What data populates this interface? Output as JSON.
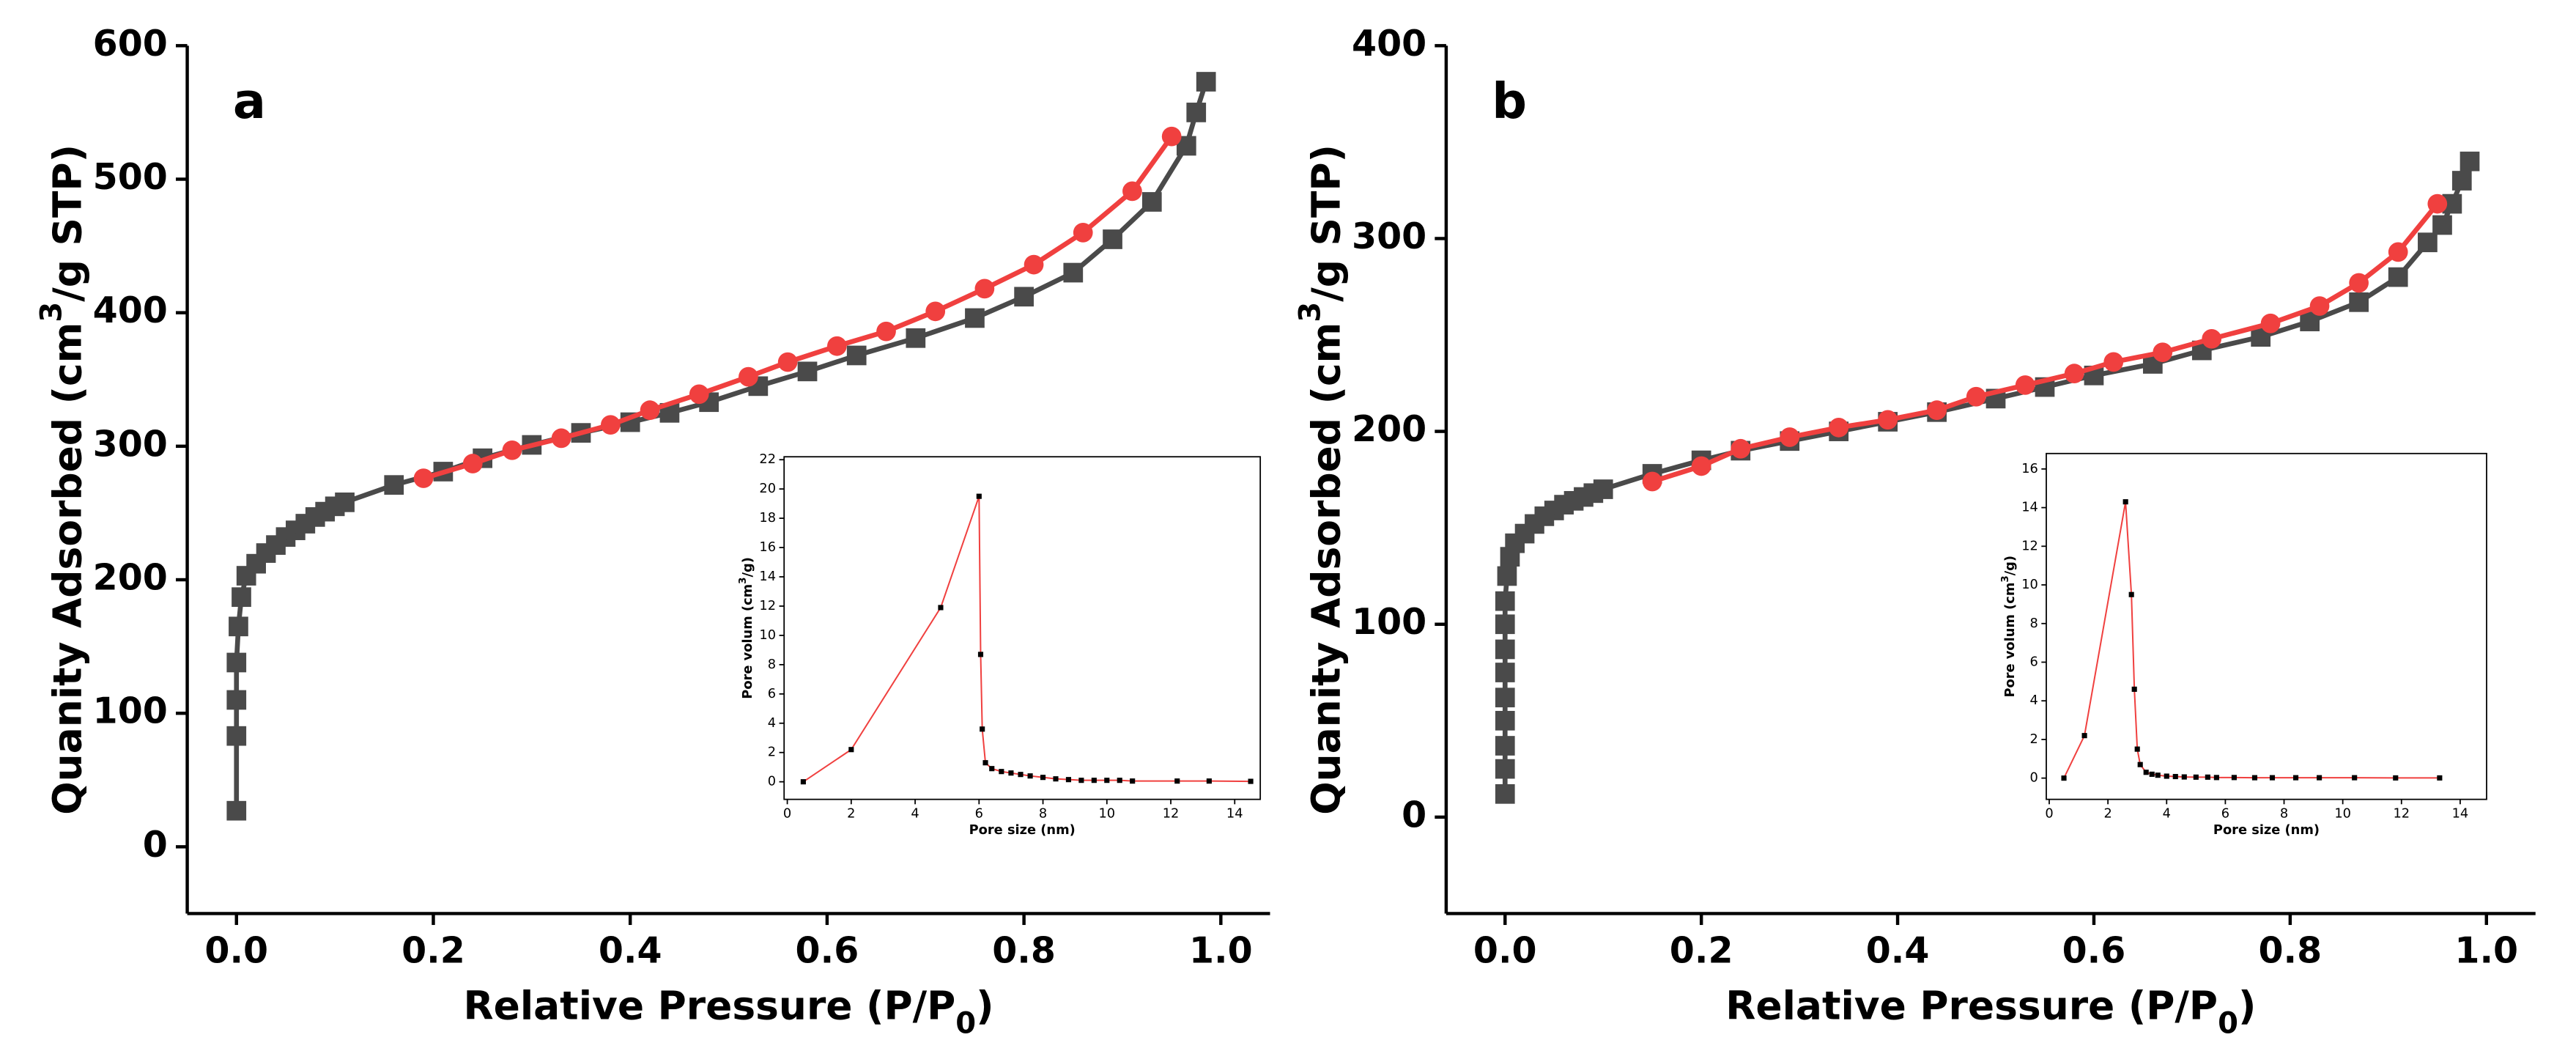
{
  "chart_data": [
    {
      "type": "line",
      "title": "a",
      "x_label": [
        "Relative Pressure (P/P",
        "0",
        ")"
      ],
      "y_label": [
        "Quanity Adsorbed (cm",
        "3",
        "/g STP)"
      ],
      "xlim": [
        -0.05,
        1.05
      ],
      "ylim": [
        -50,
        600
      ],
      "xticks": [
        {
          "value": 0,
          "label": "0.0"
        },
        0.2,
        0.4,
        0.6,
        0.8,
        {
          "value": 1,
          "label": "1.0"
        }
      ],
      "yticks": [
        0,
        100,
        200,
        300,
        400,
        500,
        600
      ],
      "series": [
        {
          "color": "#4a4a4a",
          "marker": "square",
          "x": [
            0,
            0,
            0,
            0,
            0.002,
            0.005,
            0.01,
            0.02,
            0.03,
            0.04,
            0.05,
            0.06,
            0.07,
            0.08,
            0.09,
            0.1,
            0.11,
            0.16,
            0.21,
            0.25,
            0.3,
            0.35,
            0.4,
            0.44,
            0.48,
            0.53,
            0.58,
            0.63,
            0.69,
            0.75,
            0.8,
            0.85,
            0.89,
            0.93,
            0.965,
            0.975,
            0.985
          ],
          "values": [
            27,
            83,
            110,
            138,
            165,
            187,
            203,
            212,
            220,
            226,
            232,
            237,
            242,
            247,
            251,
            255,
            258,
            271,
            281,
            291,
            301,
            310,
            318,
            325,
            333,
            345,
            356,
            368,
            381,
            396,
            412,
            430,
            455,
            483,
            525,
            550,
            573
          ]
        },
        {
          "color": "#f0403f",
          "marker": "circle",
          "x": [
            0.19,
            0.24,
            0.28,
            0.33,
            0.38,
            0.42,
            0.47,
            0.52,
            0.56,
            0.61,
            0.66,
            0.71,
            0.76,
            0.81,
            0.86,
            0.91,
            0.95
          ],
          "values": [
            276,
            287,
            297,
            306,
            316,
            327,
            339,
            352,
            363,
            375,
            386,
            401,
            418,
            436,
            460,
            491,
            532
          ]
        }
      ]
    },
    {
      "type": "line",
      "x_label": "Pore size (nm)",
      "y_label": [
        "Pore volum (cm",
        "3",
        "/g)"
      ],
      "xlim": [
        -0.1,
        14.8
      ],
      "ylim": [
        -1.2,
        22.2
      ],
      "xticks": [
        0,
        2,
        4,
        6,
        8,
        10,
        12,
        14
      ],
      "yticks": [
        0,
        2,
        4,
        6,
        8,
        10,
        12,
        14,
        16,
        18,
        20,
        22
      ],
      "series": [
        {
          "color": "#f0403f",
          "marker": "square",
          "marker_color": "#000000",
          "x": [
            0.5,
            2,
            4.8,
            6.0,
            6.05,
            6.1,
            6.2,
            6.4,
            6.7,
            7,
            7.3,
            7.6,
            8,
            8.4,
            8.8,
            9.2,
            9.6,
            10,
            10.4,
            10.8,
            12.2,
            13.2,
            14.5
          ],
          "values": [
            0,
            2.2,
            11.9,
            19.5,
            8.7,
            3.6,
            1.3,
            0.9,
            0.7,
            0.6,
            0.5,
            0.4,
            0.3,
            0.2,
            0.15,
            0.1,
            0.1,
            0.1,
            0.1,
            0.05,
            0.05,
            0.05,
            0.03
          ]
        }
      ]
    },
    {
      "type": "line",
      "title": "b",
      "x_label": [
        "Relative Pressure (P/P",
        "0",
        ")"
      ],
      "y_label": [
        "Quanity Adsorbed (cm",
        "3",
        "/g STP)"
      ],
      "xlim": [
        -0.06,
        1.05
      ],
      "ylim": [
        -50,
        400
      ],
      "xticks": [
        {
          "value": 0,
          "label": "0.0"
        },
        0.2,
        0.4,
        0.6,
        0.8,
        {
          "value": 1,
          "label": "1.0"
        }
      ],
      "yticks": [
        0,
        100,
        200,
        300,
        400
      ],
      "series": [
        {
          "color": "#4a4a4a",
          "marker": "square",
          "x": [
            0,
            0,
            0,
            0,
            0,
            0,
            0,
            0,
            0,
            0.002,
            0.005,
            0.01,
            0.02,
            0.03,
            0.04,
            0.05,
            0.06,
            0.07,
            0.08,
            0.09,
            0.1,
            0.15,
            0.2,
            0.24,
            0.29,
            0.34,
            0.39,
            0.44,
            0.5,
            0.55,
            0.6,
            0.66,
            0.71,
            0.77,
            0.82,
            0.87,
            0.91,
            0.94,
            0.955,
            0.965,
            0.975,
            0.983
          ],
          "values": [
            12,
            25,
            37,
            50,
            62,
            75,
            87,
            100,
            112,
            125,
            135,
            142,
            147,
            152,
            156,
            159,
            162,
            164,
            166,
            168,
            170,
            178,
            185,
            190,
            195,
            200,
            205,
            210,
            217,
            223,
            229,
            235,
            242,
            249,
            257,
            267,
            280,
            298,
            307,
            318,
            330,
            340
          ]
        },
        {
          "color": "#f0403f",
          "marker": "circle",
          "x": [
            0.15,
            0.2,
            0.24,
            0.29,
            0.34,
            0.39,
            0.44,
            0.48,
            0.53,
            0.58,
            0.62,
            0.67,
            0.72,
            0.78,
            0.83,
            0.87,
            0.91,
            0.95
          ],
          "values": [
            174,
            182,
            191,
            197,
            202,
            206,
            211,
            218,
            224,
            230,
            236,
            241,
            248,
            256,
            265,
            277,
            293,
            318
          ]
        }
      ]
    },
    {
      "type": "line",
      "x_label": "Pore size (nm)",
      "y_label": [
        "Pore volum (cm",
        "3",
        "/g)"
      ],
      "xlim": [
        -0.1,
        14.9
      ],
      "ylim": [
        -1.1,
        16.8
      ],
      "xticks": [
        0,
        2,
        4,
        6,
        8,
        10,
        12,
        14
      ],
      "yticks": [
        0,
        2,
        4,
        6,
        8,
        10,
        12,
        14,
        16
      ],
      "series": [
        {
          "color": "#f0403f",
          "marker": "square",
          "marker_color": "#000000",
          "x": [
            0.5,
            1.2,
            2.6,
            2.8,
            2.9,
            3.0,
            3.1,
            3.3,
            3.5,
            3.7,
            4,
            4.3,
            4.6,
            5,
            5.4,
            5.7,
            6.3,
            7,
            7.6,
            8.4,
            9.2,
            10.4,
            11.8,
            13.3
          ],
          "values": [
            0,
            2.2,
            14.3,
            9.5,
            4.6,
            1.5,
            0.7,
            0.3,
            0.2,
            0.15,
            0.1,
            0.08,
            0.06,
            0.05,
            0.05,
            0.03,
            0.03,
            0.02,
            0.02,
            0.02,
            0.02,
            0.02,
            0.01,
            0.01
          ]
        }
      ]
    }
  ]
}
